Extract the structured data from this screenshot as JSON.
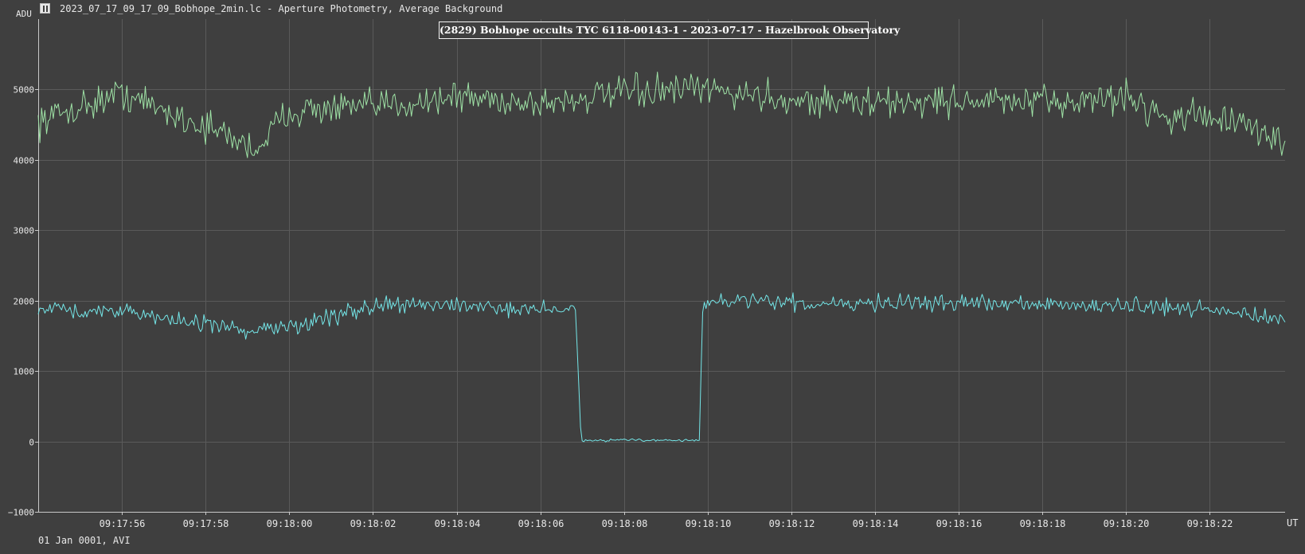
{
  "window": {
    "title": "2023_07_17_09_17_09_Bobhope_2min.lc - Aperture Photometry, Average Background",
    "icon": "lightcurve-app-icon"
  },
  "footer": {
    "date_label": "01 Jan 0001, AVI"
  },
  "chart_data": {
    "type": "line",
    "title": "(2829) Bobhope occults TYC 6118-00143-1 - 2023-07-17 - Hazelbrook Observatory",
    "ylabel": "ADU",
    "xlabel": "UT",
    "xlim": [
      "09:17:54",
      "09:18:23.8"
    ],
    "ylim": [
      -1000,
      6000
    ],
    "grid": true,
    "x_ticks": [
      "09:17:56",
      "09:17:58",
      "09:18:00",
      "09:18:02",
      "09:18:04",
      "09:18:06",
      "09:18:08",
      "09:18:10",
      "09:18:12",
      "09:18:14",
      "09:18:16",
      "09:18:18",
      "09:18:20",
      "09:18:22"
    ],
    "y_ticks": [
      -1000,
      0,
      1000,
      2000,
      3000,
      4000,
      5000
    ],
    "colors": {
      "background": "#3f3f3f",
      "grid": "#5a5a5a",
      "axis": "#c8c8c8",
      "comparison": "#9fe3a6",
      "target": "#74e6e8"
    },
    "series": [
      {
        "role": "comparison",
        "x": [
          "09:17:54",
          "09:17:56",
          "09:17:57",
          "09:17:58.5",
          "09:17:59.2",
          "09:18:00",
          "09:18:02",
          "09:18:04",
          "09:18:06",
          "09:18:08",
          "09:18:10",
          "09:18:12",
          "09:18:14",
          "09:18:16",
          "09:18:18",
          "09:18:20",
          "09:18:21",
          "09:18:22",
          "09:18:23.8"
        ],
        "values": [
          4550,
          4950,
          4700,
          4350,
          4150,
          4700,
          4750,
          4900,
          4800,
          4950,
          5000,
          4850,
          4800,
          4850,
          4800,
          4900,
          4600,
          4650,
          4250
        ]
      },
      {
        "role": "target",
        "x": [
          "09:17:54",
          "09:17:56",
          "09:17:58",
          "09:17:59",
          "09:18:00",
          "09:18:02",
          "09:18:04",
          "09:18:05",
          "09:18:06.85",
          "09:18:06.95",
          "09:18:07",
          "09:18:08",
          "09:18:09.8",
          "09:18:09.88",
          "09:18:10",
          "09:18:12",
          "09:18:14",
          "09:18:16",
          "09:18:18",
          "09:18:20",
          "09:18:22",
          "09:18:23.8"
        ],
        "values": [
          1900,
          1850,
          1650,
          1560,
          1620,
          1920,
          1950,
          1900,
          1880,
          250,
          10,
          20,
          15,
          1950,
          1970,
          1970,
          1970,
          1980,
          1930,
          1920,
          1860,
          1720
        ]
      }
    ]
  }
}
